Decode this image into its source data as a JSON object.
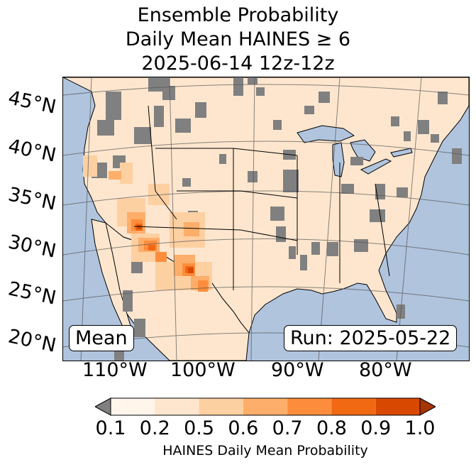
{
  "title": {
    "line1": "Ensemble Probability",
    "line2": "Daily Mean HAINES ≥ 6",
    "line3": "2025-06-14 12z-12z"
  },
  "map": {
    "region": "Contiguous United States",
    "lat_labels": [
      "45°N",
      "40°N",
      "35°N",
      "30°N",
      "25°N",
      "20°N"
    ],
    "lon_labels": [
      "110°W",
      "100°W",
      "90°W",
      "80°W"
    ],
    "ocean_color": "#b0c4de",
    "land_base_color": "#fee6ce",
    "missing_color": "#808080",
    "stat_label": "Mean",
    "run_label": "Run: 2025-05-22"
  },
  "colorbar": {
    "label": "HAINES Daily Mean Probability",
    "tick_labels": [
      "0.1",
      "0.2",
      "0.5",
      "0.6",
      "0.7",
      "0.8",
      "0.9",
      "1.0"
    ],
    "bin_colors": [
      "#fff5eb",
      "#fee6ce",
      "#fdd0a2",
      "#fdae6b",
      "#fd8d3c",
      "#f16913",
      "#d94801"
    ],
    "under_color": "#808080",
    "over_color": "#a63603"
  }
}
